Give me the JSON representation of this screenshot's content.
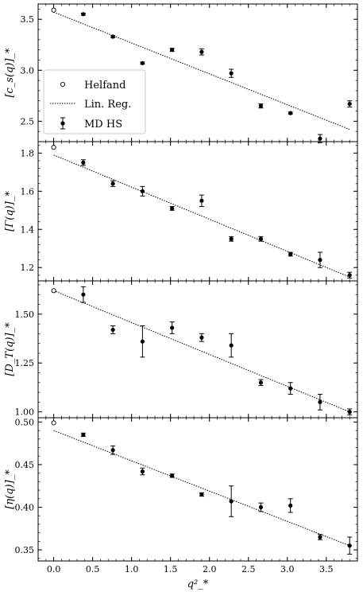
{
  "chart_data": [
    {
      "type": "scatter",
      "ylabel": "[c_s(q)]_*",
      "ylim": [
        2.3,
        3.65
      ],
      "yticks": [
        2.5,
        3.0,
        3.5
      ],
      "ytick_labels": [
        "2.5",
        "3.0",
        "3.5"
      ],
      "helfand": {
        "x": 0.0,
        "y": 3.59
      },
      "md_hs": {
        "x": [
          0.38,
          0.76,
          1.14,
          1.52,
          1.9,
          2.28,
          2.66,
          3.04,
          3.42,
          3.8
        ],
        "y": [
          3.55,
          3.33,
          3.07,
          3.2,
          3.18,
          2.97,
          2.65,
          2.58,
          2.33,
          2.67
        ],
        "err": [
          0.01,
          0.01,
          0.01,
          0.015,
          0.03,
          0.04,
          0.02,
          0.01,
          0.04,
          0.03
        ]
      },
      "fit": {
        "x": [
          0.0,
          3.8
        ],
        "y": [
          3.57,
          2.42
        ]
      },
      "legend": {
        "location": "middle-left",
        "entries": [
          {
            "label": "Helfand",
            "marker": "open-circle"
          },
          {
            "label": "Lin. Reg.",
            "marker": "dotted-line"
          },
          {
            "label": "MD HS",
            "marker": "errorbar-dot"
          }
        ]
      }
    },
    {
      "type": "scatter",
      "ylabel": "[Γ(q)]_*",
      "ylim": [
        1.13,
        1.86
      ],
      "yticks": [
        1.2,
        1.4,
        1.6,
        1.8
      ],
      "ytick_labels": [
        "1.2",
        "1.4",
        "1.6",
        "1.8"
      ],
      "helfand": {
        "x": 0.0,
        "y": 1.83
      },
      "md_hs": {
        "x": [
          0.38,
          0.76,
          1.14,
          1.52,
          1.9,
          2.28,
          2.66,
          3.04,
          3.42,
          3.8
        ],
        "y": [
          1.75,
          1.64,
          1.6,
          1.51,
          1.55,
          1.35,
          1.35,
          1.27,
          1.24,
          1.16
        ],
        "err": [
          0.015,
          0.015,
          0.025,
          0.01,
          0.03,
          0.012,
          0.012,
          0.01,
          0.04,
          0.015
        ]
      },
      "fit": {
        "x": [
          0.0,
          3.8
        ],
        "y": [
          1.79,
          1.15
        ]
      }
    },
    {
      "type": "scatter",
      "ylabel": "[D_T(q)]_*",
      "ylim": [
        0.97,
        1.67
      ],
      "yticks": [
        1.0,
        1.25,
        1.5
      ],
      "ytick_labels": [
        "1.00",
        "1.25",
        "1.50"
      ],
      "helfand": {
        "x": 0.0,
        "y": 1.62
      },
      "md_hs": {
        "x": [
          0.38,
          0.76,
          1.14,
          1.52,
          1.9,
          2.28,
          2.66,
          3.04,
          3.42,
          3.8
        ],
        "y": [
          1.6,
          1.42,
          1.36,
          1.43,
          1.38,
          1.34,
          1.15,
          1.12,
          1.05,
          1.0
        ],
        "err": [
          0.04,
          0.02,
          0.08,
          0.03,
          0.02,
          0.06,
          0.015,
          0.03,
          0.04,
          0.015
        ]
      },
      "fit": {
        "x": [
          0.0,
          3.8
        ],
        "y": [
          1.62,
          1.0
        ]
      }
    },
    {
      "type": "scatter",
      "ylabel": "[η(q)]_*",
      "ylim": [
        0.337,
        0.505
      ],
      "yticks": [
        0.35,
        0.4,
        0.45,
        0.5
      ],
      "ytick_labels": [
        "0.35",
        "0.40",
        "0.45",
        "0.50"
      ],
      "xlabel": "q²_*",
      "xlim": [
        -0.2,
        3.9
      ],
      "xticks": [
        0.0,
        0.5,
        1.0,
        1.5,
        2.0,
        2.5,
        3.0,
        3.5
      ],
      "xtick_labels": [
        "0.0",
        "0.5",
        "1.0",
        "1.5",
        "2.0",
        "2.5",
        "3.0",
        "3.5"
      ],
      "helfand": {
        "x": 0.0,
        "y": 0.499
      },
      "md_hs": {
        "x": [
          0.38,
          0.76,
          1.14,
          1.52,
          1.9,
          2.28,
          2.66,
          3.04,
          3.42,
          3.8
        ],
        "y": [
          0.485,
          0.467,
          0.442,
          0.437,
          0.415,
          0.407,
          0.4,
          0.402,
          0.365,
          0.355
        ],
        "err": [
          0.002,
          0.005,
          0.004,
          0.002,
          0.002,
          0.018,
          0.005,
          0.008,
          0.003,
          0.01
        ]
      },
      "fit": {
        "x": [
          0.0,
          3.8
        ],
        "y": [
          0.49,
          0.355
        ]
      }
    }
  ]
}
